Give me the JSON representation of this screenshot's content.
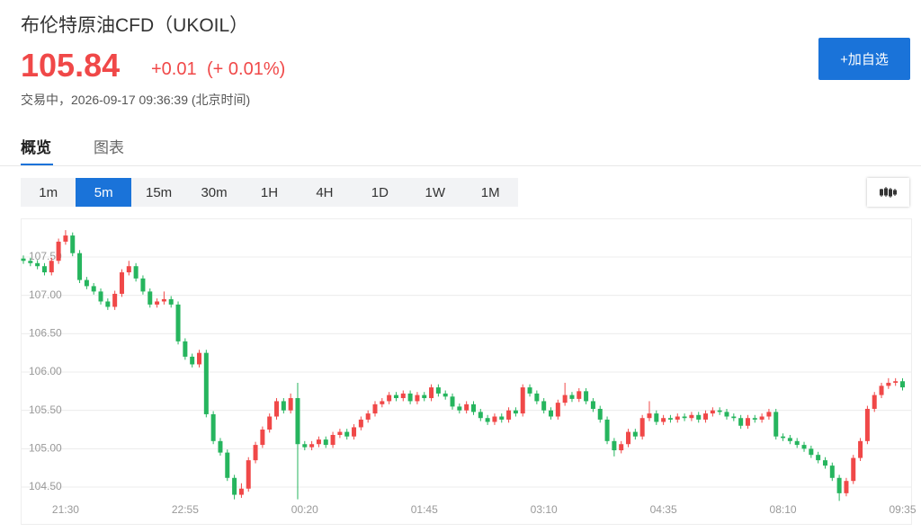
{
  "header": {
    "title": "布伦特原油CFD（UKOIL）",
    "price": "105.84",
    "change": "+0.01",
    "change_percent": "(+ 0.01%)",
    "status": "交易中，2026-09-17 09:36:39 (北京时间)"
  },
  "button": "+加自选",
  "tabs": [
    "概览",
    "图表"
  ],
  "intervals": [
    "1m",
    "5m",
    "15m",
    "30m",
    "1H",
    "4H",
    "1D",
    "1W",
    "1M"
  ],
  "chart_data": {
    "type": "candlestick",
    "grid": true,
    "up_color": "#f04848",
    "down_color": "#26b55e",
    "ylim": [
      104.02,
      107.98
    ],
    "yticks": [
      {
        "value": 104.5,
        "label": "104.50"
      },
      {
        "value": 105,
        "label": "105.00"
      },
      {
        "value": 105.5,
        "label": "105.50"
      },
      {
        "value": 106,
        "label": "106.00"
      },
      {
        "value": 106.5,
        "label": "106.50"
      },
      {
        "value": 107,
        "label": "107.00"
      },
      {
        "value": 107.5,
        "label": "107.50"
      }
    ],
    "categories": [
      null,
      null,
      null,
      null,
      null,
      null,
      "21:30",
      null,
      null,
      null,
      null,
      null,
      null,
      null,
      null,
      null,
      null,
      null,
      null,
      null,
      null,
      null,
      null,
      "22:55",
      null,
      null,
      null,
      null,
      null,
      null,
      null,
      null,
      null,
      null,
      null,
      null,
      null,
      null,
      null,
      null,
      "00:20",
      null,
      null,
      null,
      null,
      null,
      null,
      null,
      null,
      null,
      null,
      null,
      null,
      null,
      null,
      null,
      null,
      "01:45",
      null,
      null,
      null,
      null,
      null,
      null,
      null,
      null,
      null,
      null,
      null,
      null,
      null,
      null,
      null,
      null,
      "03:10",
      null,
      null,
      null,
      null,
      null,
      null,
      null,
      null,
      null,
      null,
      null,
      null,
      null,
      null,
      null,
      null,
      "04:35",
      null,
      null,
      null,
      null,
      null,
      null,
      null,
      null,
      null,
      null,
      null,
      null,
      null,
      null,
      null,
      null,
      "08:10",
      null,
      null,
      null,
      null,
      null,
      null,
      null,
      null,
      null,
      null,
      null,
      null,
      null,
      null,
      null,
      null,
      "09:35"
    ],
    "open": [
      107.48,
      107.45,
      107.42,
      107.38,
      107.3,
      107.45,
      107.7,
      107.78,
      107.55,
      107.2,
      107.12,
      107.05,
      106.92,
      106.85,
      107.02,
      107.3,
      107.38,
      107.22,
      107.05,
      106.88,
      106.92,
      106.95,
      106.88,
      106.4,
      106.2,
      106.1,
      106.25,
      105.45,
      105.1,
      104.95,
      104.62,
      104.4,
      104.48,
      104.85,
      105.05,
      105.25,
      105.42,
      105.62,
      105.5,
      105.66,
      105.06,
      105.02,
      105.06,
      105.12,
      105.05,
      105.18,
      105.22,
      105.16,
      105.28,
      105.38,
      105.46,
      105.58,
      105.62,
      105.7,
      105.66,
      105.72,
      105.62,
      105.7,
      105.66,
      105.8,
      105.72,
      105.68,
      105.55,
      105.5,
      105.58,
      105.48,
      105.4,
      105.35,
      105.42,
      105.38,
      105.5,
      105.46,
      105.8,
      105.72,
      105.62,
      105.5,
      105.42,
      105.6,
      105.7,
      105.65,
      105.75,
      105.62,
      105.52,
      105.38,
      105.1,
      104.98,
      105.06,
      105.22,
      105.16,
      105.4,
      105.46,
      105.35,
      105.4,
      105.38,
      105.42,
      105.4,
      105.44,
      105.38,
      105.46,
      105.5,
      105.48,
      105.42,
      105.4,
      105.3,
      105.4,
      105.38,
      105.42,
      105.48,
      105.16,
      105.14,
      105.1,
      105.05,
      105.0,
      104.92,
      104.85,
      104.78,
      104.62,
      104.42,
      104.58,
      104.88,
      105.1,
      105.52,
      105.7,
      105.82,
      105.86,
      105.88
    ],
    "high": [
      107.52,
      107.49,
      107.46,
      107.42,
      107.49,
      107.74,
      107.85,
      107.82,
      107.59,
      107.24,
      107.16,
      107.09,
      106.96,
      107.06,
      107.34,
      107.45,
      107.42,
      107.26,
      107.09,
      106.96,
      107.05,
      106.99,
      106.92,
      106.44,
      106.24,
      106.29,
      106.29,
      105.49,
      105.14,
      104.99,
      104.66,
      104.55,
      104.89,
      105.09,
      105.29,
      105.46,
      105.66,
      105.66,
      105.72,
      105.86,
      105.1,
      105.1,
      105.16,
      105.16,
      105.22,
      105.26,
      105.26,
      105.32,
      105.42,
      105.5,
      105.62,
      105.66,
      105.74,
      105.74,
      105.76,
      105.76,
      105.74,
      105.74,
      105.84,
      105.84,
      105.76,
      105.72,
      105.59,
      105.62,
      105.62,
      105.52,
      105.44,
      105.46,
      105.46,
      105.54,
      105.54,
      105.84,
      105.84,
      105.76,
      105.66,
      105.54,
      105.64,
      105.86,
      105.74,
      105.79,
      105.79,
      105.66,
      105.56,
      105.42,
      105.14,
      105.1,
      105.26,
      105.26,
      105.44,
      105.62,
      105.5,
      105.44,
      105.44,
      105.46,
      105.46,
      105.48,
      105.48,
      105.5,
      105.54,
      105.54,
      105.52,
      105.46,
      105.44,
      105.44,
      105.44,
      105.46,
      105.52,
      105.52,
      105.2,
      105.18,
      105.14,
      105.09,
      105.04,
      104.96,
      104.89,
      104.82,
      104.66,
      104.62,
      104.92,
      105.14,
      105.56,
      105.74,
      105.86,
      105.92,
      105.92,
      105.92
    ],
    "low": [
      107.41,
      107.38,
      107.34,
      107.26,
      107.26,
      107.41,
      107.66,
      107.51,
      107.16,
      107.08,
      107.01,
      106.88,
      106.81,
      106.81,
      106.98,
      107.26,
      107.18,
      107.01,
      106.84,
      106.84,
      106.88,
      106.84,
      106.36,
      106.16,
      106.06,
      106.06,
      105.41,
      105.06,
      104.91,
      104.58,
      104.34,
      104.36,
      104.44,
      104.81,
      105.01,
      105.21,
      105.38,
      105.46,
      105.46,
      104.34,
      104.98,
      104.98,
      105.02,
      105.01,
      105.01,
      105.14,
      105.12,
      105.12,
      105.24,
      105.34,
      105.42,
      105.54,
      105.58,
      105.62,
      105.62,
      105.58,
      105.58,
      105.62,
      105.62,
      105.68,
      105.64,
      105.51,
      105.46,
      105.46,
      105.44,
      105.36,
      105.31,
      105.31,
      105.34,
      105.34,
      105.42,
      105.42,
      105.68,
      105.58,
      105.46,
      105.38,
      105.38,
      105.56,
      105.61,
      105.61,
      105.58,
      105.48,
      105.34,
      105.06,
      104.9,
      104.94,
      105.02,
      105.12,
      105.12,
      105.36,
      105.31,
      105.31,
      105.34,
      105.34,
      105.36,
      105.36,
      105.34,
      105.34,
      105.42,
      105.44,
      105.38,
      105.36,
      105.26,
      105.26,
      105.34,
      105.34,
      105.38,
      105.12,
      105.1,
      105.06,
      105.01,
      104.96,
      104.88,
      104.81,
      104.74,
      104.58,
      104.32,
      104.38,
      104.54,
      104.84,
      105.06,
      105.48,
      105.66,
      105.78,
      105.82,
      105.76
    ],
    "close": [
      107.45,
      107.42,
      107.38,
      107.3,
      107.45,
      107.7,
      107.78,
      107.55,
      107.2,
      107.12,
      107.05,
      106.92,
      106.85,
      107.02,
      107.3,
      107.38,
      107.22,
      107.05,
      106.88,
      106.92,
      106.95,
      106.88,
      106.4,
      106.2,
      106.1,
      106.25,
      105.45,
      105.1,
      104.95,
      104.62,
      104.4,
      104.48,
      104.85,
      105.05,
      105.25,
      105.42,
      105.62,
      105.5,
      105.66,
      105.06,
      105.02,
      105.06,
      105.12,
      105.05,
      105.18,
      105.22,
      105.16,
      105.28,
      105.38,
      105.46,
      105.58,
      105.62,
      105.7,
      105.66,
      105.72,
      105.62,
      105.7,
      105.66,
      105.8,
      105.72,
      105.68,
      105.55,
      105.5,
      105.58,
      105.48,
      105.4,
      105.35,
      105.42,
      105.38,
      105.5,
      105.46,
      105.8,
      105.72,
      105.62,
      105.5,
      105.42,
      105.6,
      105.7,
      105.65,
      105.75,
      105.62,
      105.52,
      105.38,
      105.1,
      104.98,
      105.06,
      105.22,
      105.16,
      105.4,
      105.46,
      105.35,
      105.4,
      105.38,
      105.42,
      105.4,
      105.44,
      105.38,
      105.46,
      105.5,
      105.48,
      105.42,
      105.4,
      105.3,
      105.4,
      105.38,
      105.42,
      105.48,
      105.16,
      105.14,
      105.1,
      105.05,
      105.0,
      104.92,
      104.85,
      104.78,
      104.62,
      104.42,
      104.58,
      104.88,
      105.1,
      105.52,
      105.7,
      105.82,
      105.86,
      105.88,
      105.8
    ]
  }
}
